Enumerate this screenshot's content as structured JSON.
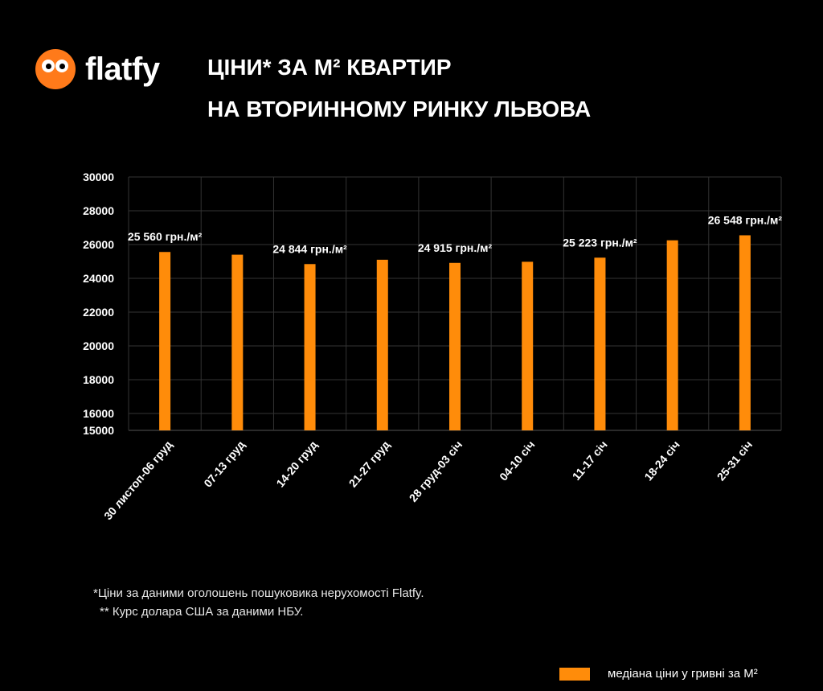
{
  "brand": {
    "name": "flatfy",
    "logo_color": "#ff7a1a"
  },
  "header": {
    "title_line1": "ЦІНИ* ЗА М² КВАРТИР",
    "title_line2": "НА ВТОРИННОМУ РИНКУ ЛЬВОВА"
  },
  "footnotes": {
    "line1": "*Ціни за даними оголошень пошуковика нерухомості Flatfy.",
    "line2": "** Курс долара США за даними НБУ."
  },
  "chart_data": {
    "type": "bar",
    "categories": [
      "30 листоп-06 груд",
      "07-13 груд",
      "14-20 груд",
      "21-27 груд",
      "28 груд-03 січ",
      "04-10 січ",
      "11-17 січ",
      "18-24 січ",
      "25-31 січ"
    ],
    "series": [
      {
        "name": "медіана ціни у гривні за М²",
        "values": [
          25560,
          25400,
          24844,
          25100,
          24915,
          24980,
          25223,
          26250,
          26548
        ],
        "color": "#ff8c0a"
      }
    ],
    "data_labels": [
      {
        "index": 0,
        "text": "25 560 грн./м²"
      },
      {
        "index": 2,
        "text": "24 844 грн./м²"
      },
      {
        "index": 4,
        "text": "24 915 грн./м²"
      },
      {
        "index": 6,
        "text": "25 223 грн./м²"
      },
      {
        "index": 8,
        "text": "26 548 грн./м²"
      }
    ],
    "y_ticks": [
      15000,
      16000,
      18000,
      20000,
      22000,
      24000,
      26000,
      28000,
      30000
    ],
    "ylim": [
      15000,
      30000
    ],
    "grid": true,
    "legend_position": "bottom-right",
    "background": "#000000",
    "text_color": "#ffffff",
    "grid_color": "#333333"
  }
}
